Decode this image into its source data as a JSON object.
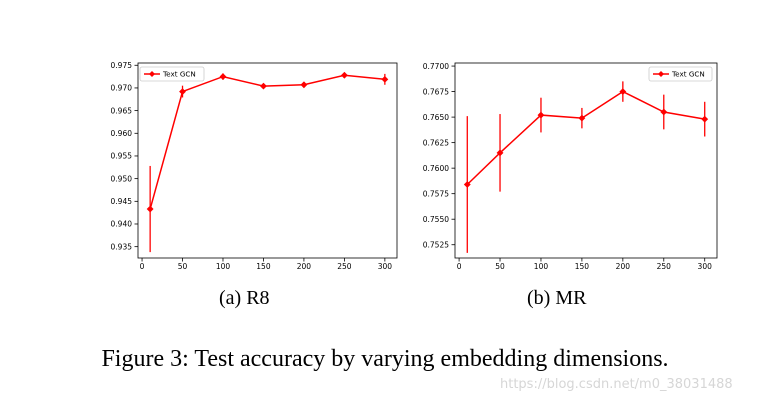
{
  "chart_data": [
    {
      "type": "line",
      "id": "a",
      "x": [
        10,
        50,
        100,
        150,
        200,
        250,
        300
      ],
      "series": [
        {
          "name": "Text GCN",
          "color": "#ff0000",
          "values": [
            0.9433,
            0.9692,
            0.9725,
            0.9704,
            0.9707,
            0.9728,
            0.9719
          ],
          "errors": [
            0.0095,
            0.0013,
            0.0007,
            0.0004,
            0.0006,
            0.0006,
            0.0012
          ]
        }
      ],
      "xlim": [
        -5,
        315
      ],
      "ylim": [
        0.9325,
        0.9755
      ],
      "xticks": [
        0,
        50,
        100,
        150,
        200,
        250,
        300
      ],
      "xtick_labels": [
        "0",
        "50",
        "100",
        "150",
        "200",
        "250",
        "300"
      ],
      "yticks": [
        0.935,
        0.94,
        0.945,
        0.95,
        0.955,
        0.96,
        0.965,
        0.97,
        0.975
      ],
      "ytick_labels": [
        "0.935",
        "0.940",
        "0.945",
        "0.950",
        "0.955",
        "0.960",
        "0.965",
        "0.970",
        "0.975"
      ],
      "legend_position": "top-left",
      "caption": "(a)  R8"
    },
    {
      "type": "line",
      "id": "b",
      "x": [
        10,
        50,
        100,
        150,
        200,
        250,
        300
      ],
      "series": [
        {
          "name": "Text GCN",
          "color": "#ff0000",
          "values": [
            0.7584,
            0.7615,
            0.7652,
            0.7649,
            0.7675,
            0.7655,
            0.7648
          ],
          "errors": [
            0.0067,
            0.0038,
            0.0017,
            0.001,
            0.001,
            0.0017,
            0.0017
          ]
        }
      ],
      "xlim": [
        -5,
        315
      ],
      "ylim": [
        0.7512,
        0.7703
      ],
      "xticks": [
        0,
        50,
        100,
        150,
        200,
        250,
        300
      ],
      "xtick_labels": [
        "0",
        "50",
        "100",
        "150",
        "200",
        "250",
        "300"
      ],
      "yticks": [
        0.7525,
        0.755,
        0.7575,
        0.76,
        0.7625,
        0.765,
        0.7675,
        0.77
      ],
      "ytick_labels": [
        "0.7525",
        "0.7550",
        "0.7575",
        "0.7600",
        "0.7625",
        "0.7650",
        "0.7675",
        "0.7700"
      ],
      "legend_position": "top-right",
      "caption": "(b)  MR"
    }
  ],
  "figure_caption": "Figure 3: Test accuracy by varying embedding dimensions.",
  "watermark": "https://blog.csdn.net/m0_38031488"
}
